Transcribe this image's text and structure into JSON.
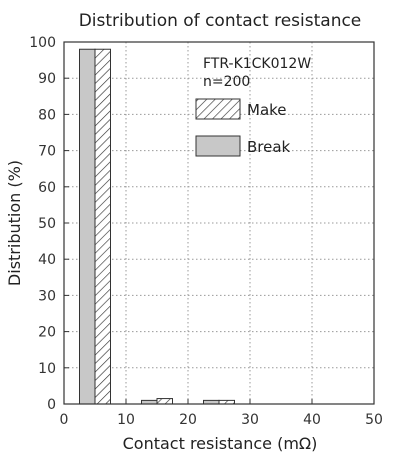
{
  "chart_data": {
    "type": "bar",
    "title": "Distribution of contact resistance",
    "xlabel": "Contact resistance (mΩ)",
    "ylabel": "Distribution (%)",
    "xlim": [
      0,
      50
    ],
    "ylim": [
      0,
      100
    ],
    "x_ticks": [
      0,
      10,
      20,
      30,
      40,
      50
    ],
    "y_ticks": [
      0,
      10,
      20,
      30,
      40,
      50,
      60,
      70,
      80,
      90,
      100
    ],
    "grid": "dotted",
    "legend_position": "top-right",
    "annotation": [
      "FTR-K1CK012W",
      "n=200"
    ],
    "bin_edges": [
      2.5,
      7.5,
      12.5,
      17.5,
      22.5,
      27.5
    ],
    "series": [
      {
        "name": "Break",
        "style": "solid-gray",
        "color": "#c8c8c8",
        "x": [
          5,
          15,
          25
        ],
        "values": [
          98,
          1,
          1
        ]
      },
      {
        "name": "Make",
        "style": "hatched",
        "color": "#ffffff",
        "x": [
          5,
          15,
          25
        ],
        "values": [
          98,
          1.5,
          1
        ]
      }
    ]
  }
}
